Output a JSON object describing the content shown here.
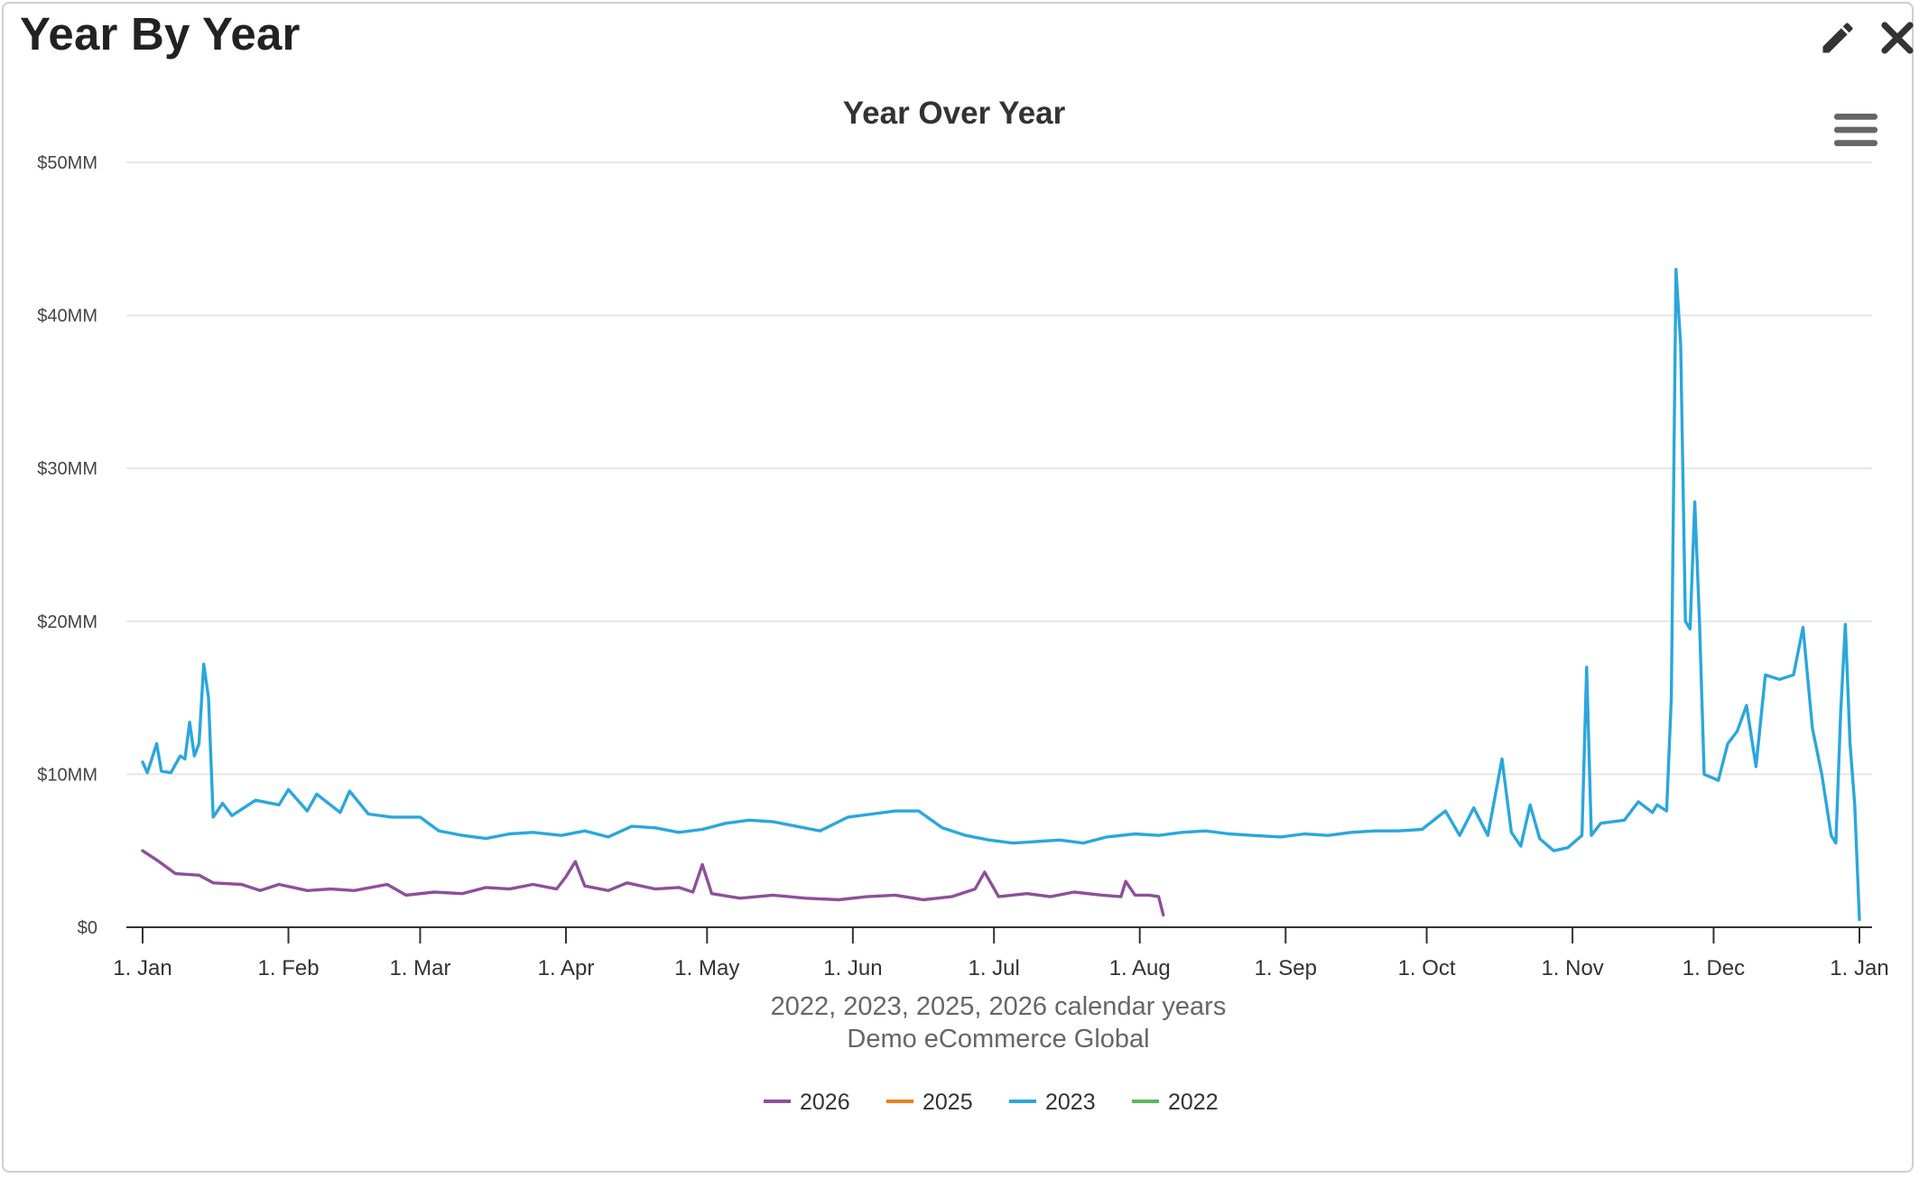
{
  "panel": {
    "title": "Year By Year",
    "actions": [
      {
        "name": "edit",
        "icon": "pencil-icon"
      },
      {
        "name": "close",
        "icon": "close-icon"
      }
    ],
    "menu_icon": "hamburger-menu-icon"
  },
  "chart_data": {
    "type": "line",
    "title": "Year Over Year",
    "subtitle": "2022, 2023, 2025, 2026 calendar years",
    "caption": "Demo eCommerce Global",
    "xlabel": "",
    "ylabel": "",
    "x_axis": {
      "type": "date",
      "min": "2023-01-01",
      "max": "2024-01-01",
      "ticks": [
        {
          "date": "2023-01-01",
          "label": "1. Jan"
        },
        {
          "date": "2023-02-01",
          "label": "1. Feb"
        },
        {
          "date": "2023-03-01",
          "label": "1. Mar"
        },
        {
          "date": "2023-04-01",
          "label": "1. Apr"
        },
        {
          "date": "2023-05-01",
          "label": "1. May"
        },
        {
          "date": "2023-06-01",
          "label": "1. Jun"
        },
        {
          "date": "2023-07-01",
          "label": "1. Jul"
        },
        {
          "date": "2023-08-01",
          "label": "1. Aug"
        },
        {
          "date": "2023-09-01",
          "label": "1. Sep"
        },
        {
          "date": "2023-10-01",
          "label": "1. Oct"
        },
        {
          "date": "2023-11-01",
          "label": "1. Nov"
        },
        {
          "date": "2023-12-01",
          "label": "1. Dec"
        },
        {
          "date": "2024-01-01",
          "label": "1. Jan"
        }
      ]
    },
    "y_axis": {
      "min": 0,
      "max": 50000000,
      "ticks": [
        {
          "value": 0,
          "label": "$0"
        },
        {
          "value": 10000000,
          "label": "$10MM"
        },
        {
          "value": 20000000,
          "label": "$20MM"
        },
        {
          "value": 30000000,
          "label": "$30MM"
        },
        {
          "value": 40000000,
          "label": "$40MM"
        },
        {
          "value": 50000000,
          "label": "$50MM"
        }
      ],
      "grid": true
    },
    "legend": {
      "placement": "bottom-center"
    },
    "series": [
      {
        "name": "2026",
        "color": "#8e4f9a",
        "points": [
          [
            "2023-01-01",
            5.0
          ],
          [
            "2023-01-04",
            4.4
          ],
          [
            "2023-01-08",
            3.5
          ],
          [
            "2023-01-13",
            3.4
          ],
          [
            "2023-01-16",
            2.9
          ],
          [
            "2023-01-22",
            2.8
          ],
          [
            "2023-01-26",
            2.4
          ],
          [
            "2023-01-30",
            2.8
          ],
          [
            "2023-02-05",
            2.4
          ],
          [
            "2023-02-10",
            2.5
          ],
          [
            "2023-02-15",
            2.4
          ],
          [
            "2023-02-22",
            2.8
          ],
          [
            "2023-02-26",
            2.1
          ],
          [
            "2023-03-04",
            2.3
          ],
          [
            "2023-03-10",
            2.2
          ],
          [
            "2023-03-15",
            2.6
          ],
          [
            "2023-03-20",
            2.5
          ],
          [
            "2023-03-25",
            2.8
          ],
          [
            "2023-03-30",
            2.5
          ],
          [
            "2023-04-01",
            3.3
          ],
          [
            "2023-04-03",
            4.3
          ],
          [
            "2023-04-05",
            2.7
          ],
          [
            "2023-04-10",
            2.4
          ],
          [
            "2023-04-14",
            2.9
          ],
          [
            "2023-04-20",
            2.5
          ],
          [
            "2023-04-25",
            2.6
          ],
          [
            "2023-04-28",
            2.3
          ],
          [
            "2023-04-30",
            4.1
          ],
          [
            "2023-05-02",
            2.2
          ],
          [
            "2023-05-08",
            1.9
          ],
          [
            "2023-05-15",
            2.1
          ],
          [
            "2023-05-22",
            1.9
          ],
          [
            "2023-05-29",
            1.8
          ],
          [
            "2023-06-04",
            2.0
          ],
          [
            "2023-06-10",
            2.1
          ],
          [
            "2023-06-16",
            1.8
          ],
          [
            "2023-06-22",
            2.0
          ],
          [
            "2023-06-27",
            2.5
          ],
          [
            "2023-06-29",
            3.6
          ],
          [
            "2023-07-02",
            2.0
          ],
          [
            "2023-07-08",
            2.2
          ],
          [
            "2023-07-13",
            2.0
          ],
          [
            "2023-07-18",
            2.3
          ],
          [
            "2023-07-24",
            2.1
          ],
          [
            "2023-07-28",
            2.0
          ],
          [
            "2023-07-29",
            3.0
          ],
          [
            "2023-07-31",
            2.1
          ],
          [
            "2023-08-03",
            2.1
          ],
          [
            "2023-08-05",
            2.0
          ],
          [
            "2023-08-06",
            0.8
          ]
        ]
      },
      {
        "name": "2025",
        "color": "#e8801a",
        "points": []
      },
      {
        "name": "2023",
        "color": "#2aa7dc",
        "points": [
          [
            "2023-01-01",
            10.8
          ],
          [
            "2023-01-02",
            10.1
          ],
          [
            "2023-01-04",
            12.0
          ],
          [
            "2023-01-05",
            10.2
          ],
          [
            "2023-01-07",
            10.1
          ],
          [
            "2023-01-09",
            11.2
          ],
          [
            "2023-01-10",
            11.0
          ],
          [
            "2023-01-11",
            13.4
          ],
          [
            "2023-01-12",
            11.2
          ],
          [
            "2023-01-13",
            12.0
          ],
          [
            "2023-01-14",
            17.2
          ],
          [
            "2023-01-15",
            15.0
          ],
          [
            "2023-01-16",
            7.2
          ],
          [
            "2023-01-18",
            8.1
          ],
          [
            "2023-01-20",
            7.3
          ],
          [
            "2023-01-25",
            8.3
          ],
          [
            "2023-01-30",
            8.0
          ],
          [
            "2023-02-01",
            9.0
          ],
          [
            "2023-02-05",
            7.6
          ],
          [
            "2023-02-07",
            8.7
          ],
          [
            "2023-02-12",
            7.5
          ],
          [
            "2023-02-14",
            8.9
          ],
          [
            "2023-02-18",
            7.4
          ],
          [
            "2023-02-23",
            7.2
          ],
          [
            "2023-03-01",
            7.2
          ],
          [
            "2023-03-05",
            6.3
          ],
          [
            "2023-03-10",
            6.0
          ],
          [
            "2023-03-15",
            5.8
          ],
          [
            "2023-03-20",
            6.1
          ],
          [
            "2023-03-25",
            6.2
          ],
          [
            "2023-03-31",
            6.0
          ],
          [
            "2023-04-05",
            6.3
          ],
          [
            "2023-04-10",
            5.9
          ],
          [
            "2023-04-15",
            6.6
          ],
          [
            "2023-04-20",
            6.5
          ],
          [
            "2023-04-25",
            6.2
          ],
          [
            "2023-04-30",
            6.4
          ],
          [
            "2023-05-05",
            6.8
          ],
          [
            "2023-05-10",
            7.0
          ],
          [
            "2023-05-15",
            6.9
          ],
          [
            "2023-05-20",
            6.6
          ],
          [
            "2023-05-25",
            6.3
          ],
          [
            "2023-05-31",
            7.2
          ],
          [
            "2023-06-05",
            7.4
          ],
          [
            "2023-06-10",
            7.6
          ],
          [
            "2023-06-15",
            7.6
          ],
          [
            "2023-06-20",
            6.5
          ],
          [
            "2023-06-25",
            6.0
          ],
          [
            "2023-06-30",
            5.7
          ],
          [
            "2023-07-05",
            5.5
          ],
          [
            "2023-07-10",
            5.6
          ],
          [
            "2023-07-15",
            5.7
          ],
          [
            "2023-07-20",
            5.5
          ],
          [
            "2023-07-25",
            5.9
          ],
          [
            "2023-07-31",
            6.1
          ],
          [
            "2023-08-05",
            6.0
          ],
          [
            "2023-08-10",
            6.2
          ],
          [
            "2023-08-15",
            6.3
          ],
          [
            "2023-08-20",
            6.1
          ],
          [
            "2023-08-25",
            6.0
          ],
          [
            "2023-08-31",
            5.9
          ],
          [
            "2023-09-05",
            6.1
          ],
          [
            "2023-09-10",
            6.0
          ],
          [
            "2023-09-15",
            6.2
          ],
          [
            "2023-09-20",
            6.3
          ],
          [
            "2023-09-25",
            6.3
          ],
          [
            "2023-09-30",
            6.4
          ],
          [
            "2023-10-05",
            7.6
          ],
          [
            "2023-10-08",
            6.0
          ],
          [
            "2023-10-11",
            7.8
          ],
          [
            "2023-10-14",
            6.0
          ],
          [
            "2023-10-17",
            11.0
          ],
          [
            "2023-10-19",
            6.2
          ],
          [
            "2023-10-21",
            5.3
          ],
          [
            "2023-10-23",
            8.0
          ],
          [
            "2023-10-25",
            5.8
          ],
          [
            "2023-10-28",
            5.0
          ],
          [
            "2023-10-31",
            5.2
          ],
          [
            "2023-11-03",
            6.0
          ],
          [
            "2023-11-04",
            17.0
          ],
          [
            "2023-11-05",
            6.0
          ],
          [
            "2023-11-07",
            6.8
          ],
          [
            "2023-11-12",
            7.0
          ],
          [
            "2023-11-15",
            8.2
          ],
          [
            "2023-11-18",
            7.5
          ],
          [
            "2023-11-19",
            8.0
          ],
          [
            "2023-11-21",
            7.6
          ],
          [
            "2023-11-22",
            15.0
          ],
          [
            "2023-11-23",
            43.0
          ],
          [
            "2023-11-24",
            38.0
          ],
          [
            "2023-11-25",
            20.0
          ],
          [
            "2023-11-26",
            19.5
          ],
          [
            "2023-11-27",
            27.8
          ],
          [
            "2023-11-28",
            20.0
          ],
          [
            "2023-11-29",
            10.0
          ],
          [
            "2023-12-02",
            9.6
          ],
          [
            "2023-12-04",
            12.0
          ],
          [
            "2023-12-06",
            12.8
          ],
          [
            "2023-12-08",
            14.5
          ],
          [
            "2023-12-10",
            10.5
          ],
          [
            "2023-12-12",
            16.5
          ],
          [
            "2023-12-15",
            16.2
          ],
          [
            "2023-12-18",
            16.5
          ],
          [
            "2023-12-20",
            19.6
          ],
          [
            "2023-12-22",
            13.0
          ],
          [
            "2023-12-24",
            10.0
          ],
          [
            "2023-12-26",
            6.0
          ],
          [
            "2023-12-27",
            5.5
          ],
          [
            "2023-12-28",
            14.0
          ],
          [
            "2023-12-29",
            19.8
          ],
          [
            "2023-12-30",
            12.0
          ],
          [
            "2023-12-31",
            8.0
          ],
          [
            "2024-01-01",
            0.5
          ]
        ]
      },
      {
        "name": "2022",
        "color": "#5cb85c",
        "points": []
      }
    ],
    "value_unit": "MM"
  }
}
